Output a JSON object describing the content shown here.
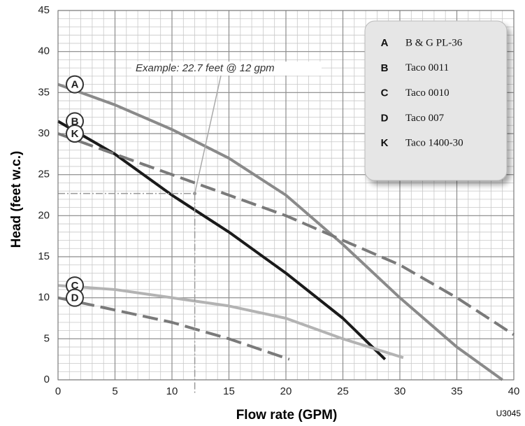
{
  "chart_data": {
    "type": "line",
    "xlabel": "Flow rate (GPM)",
    "ylabel": "Head (feet w.c.)",
    "xlim": [
      0,
      40
    ],
    "xticks": [
      0,
      5,
      10,
      15,
      20,
      25,
      30,
      35,
      40
    ],
    "ylim": [
      0,
      45
    ],
    "yticks": [
      0,
      5,
      10,
      15,
      20,
      25,
      30,
      35,
      40,
      45
    ],
    "grid": true,
    "minor_grid": 1,
    "annotation": {
      "text": "Example:  22.7 feet @ 12 gpm",
      "x": 12,
      "y": 22.7
    },
    "code": "U3045",
    "series": [
      {
        "letter": "A",
        "name": "B & G PL-36",
        "color": "#8a8a8a",
        "dashed": false,
        "x": [
          0,
          5,
          10,
          15,
          20,
          25,
          30,
          35,
          39
        ],
        "values": [
          36,
          33.5,
          30.5,
          27,
          22.5,
          16.5,
          10,
          4,
          0
        ]
      },
      {
        "letter": "B",
        "name": "Taco 0011",
        "color": "#1a1a1a",
        "dashed": false,
        "x": [
          0,
          5,
          10,
          15,
          20,
          25,
          28.7
        ],
        "values": [
          31.5,
          27.5,
          22.5,
          18,
          13,
          7.5,
          2.5
        ]
      },
      {
        "letter": "C",
        "name": "Taco 0010",
        "color": "#b3b3b3",
        "dashed": false,
        "x": [
          0,
          5,
          10,
          15,
          20,
          25,
          30.3
        ],
        "values": [
          11.5,
          11,
          10,
          9,
          7.5,
          5,
          2.7
        ]
      },
      {
        "letter": "D",
        "name": "Taco 007",
        "color": "#7a7a7a",
        "dashed": true,
        "x": [
          0,
          5,
          10,
          15,
          20.3
        ],
        "values": [
          10,
          8.5,
          7,
          5,
          2.5
        ]
      },
      {
        "letter": "K",
        "name": "Taco 1400-30",
        "color": "#7a7a7a",
        "dashed": true,
        "x": [
          0,
          5,
          10,
          15,
          20,
          25,
          30,
          35,
          40
        ],
        "values": [
          30,
          27.5,
          25,
          22.5,
          20,
          17,
          14,
          10,
          5.5
        ]
      }
    ]
  }
}
